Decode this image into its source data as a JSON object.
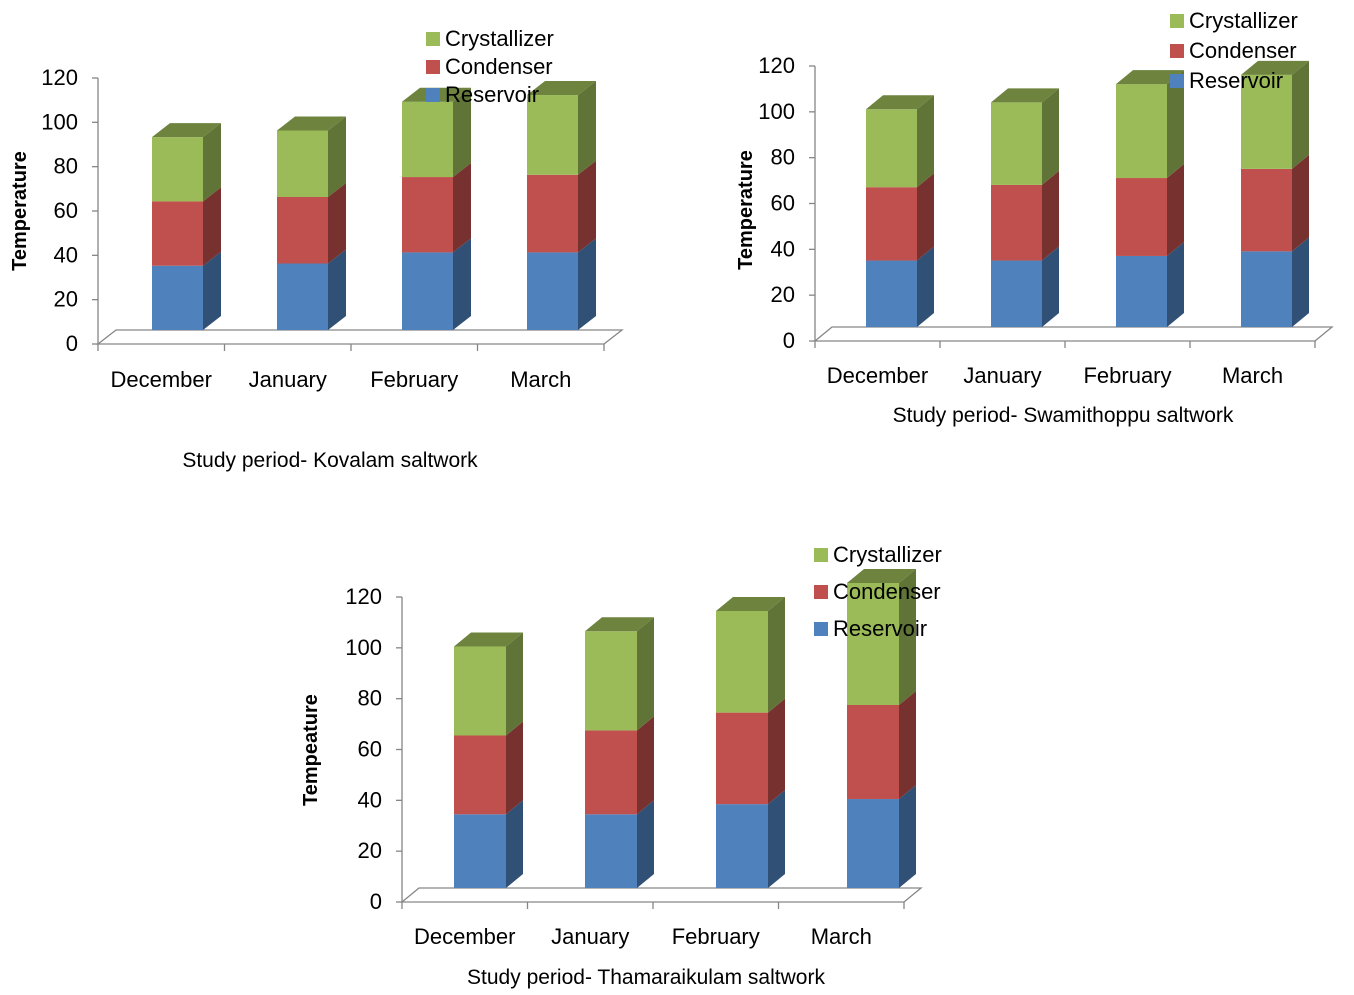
{
  "colors": {
    "Reservoir": "#4F81BD",
    "Condenser": "#C0504D",
    "Crystallizer": "#9BBB59"
  },
  "legend_order": [
    "Crystallizer",
    "Condenser",
    "Reservoir"
  ],
  "chart_data": [
    {
      "type": "bar",
      "stacked": true,
      "three_d": true,
      "categories": [
        "December",
        "January",
        "February",
        "March"
      ],
      "series": [
        {
          "name": "Reservoir",
          "values": [
            29,
            30,
            35,
            35
          ]
        },
        {
          "name": "Condenser",
          "values": [
            29,
            30,
            34,
            35
          ]
        },
        {
          "name": "Crystallizer",
          "values": [
            29,
            30,
            34,
            36
          ]
        }
      ],
      "ylabel": "Temperature",
      "xlabel": "Study period- Kovalam saltwork",
      "ylim": [
        0,
        120
      ],
      "yticks": [
        0,
        20,
        40,
        60,
        80,
        100,
        120
      ],
      "legend": "top-right",
      "grid": false
    },
    {
      "type": "bar",
      "stacked": true,
      "three_d": true,
      "categories": [
        "December",
        "January",
        "February",
        "March"
      ],
      "series": [
        {
          "name": "Reservoir",
          "values": [
            29,
            29,
            31,
            33
          ]
        },
        {
          "name": "Condenser",
          "values": [
            32,
            33,
            34,
            36
          ]
        },
        {
          "name": "Crystallizer",
          "values": [
            34,
            36,
            41,
            41
          ]
        }
      ],
      "ylabel": "Temperature",
      "xlabel": "Study period- Swamithoppu saltwork",
      "ylim": [
        0,
        120
      ],
      "yticks": [
        0,
        20,
        40,
        60,
        80,
        100,
        120
      ],
      "legend": "top-right",
      "grid": false
    },
    {
      "type": "bar",
      "stacked": true,
      "three_d": true,
      "categories": [
        "December",
        "January",
        "February",
        "March"
      ],
      "series": [
        {
          "name": "Reservoir",
          "values": [
            29,
            29,
            33,
            35
          ]
        },
        {
          "name": "Condenser",
          "values": [
            31,
            33,
            36,
            37
          ]
        },
        {
          "name": "Crystallizer",
          "values": [
            35,
            39,
            40,
            48
          ]
        }
      ],
      "ylabel": "Tempeature",
      "xlabel": "Study period- Thamaraikulam saltwork",
      "ylim": [
        0,
        120
      ],
      "yticks": [
        0,
        20,
        40,
        60,
        80,
        100,
        120
      ],
      "legend": "top-right",
      "grid": false
    }
  ]
}
